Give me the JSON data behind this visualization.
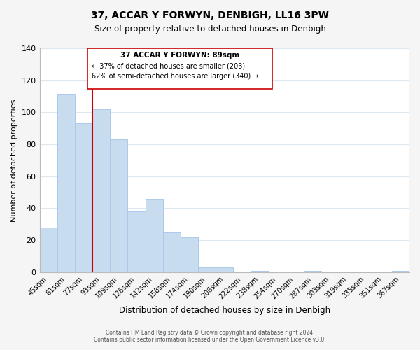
{
  "title": "37, ACCAR Y FORWYN, DENBIGH, LL16 3PW",
  "subtitle": "Size of property relative to detached houses in Denbigh",
  "xlabel": "Distribution of detached houses by size in Denbigh",
  "ylabel": "Number of detached properties",
  "bar_labels": [
    "45sqm",
    "61sqm",
    "77sqm",
    "93sqm",
    "109sqm",
    "126sqm",
    "142sqm",
    "158sqm",
    "174sqm",
    "190sqm",
    "206sqm",
    "222sqm",
    "238sqm",
    "254sqm",
    "270sqm",
    "287sqm",
    "303sqm",
    "319sqm",
    "335sqm",
    "351sqm",
    "367sqm"
  ],
  "bar_values": [
    28,
    111,
    93,
    102,
    83,
    38,
    46,
    25,
    22,
    3,
    3,
    0,
    1,
    0,
    0,
    1,
    0,
    0,
    0,
    0,
    1
  ],
  "bar_color": "#c8dcf0",
  "bar_edge_color": "#aec9e8",
  "ylim": [
    0,
    140
  ],
  "yticks": [
    0,
    20,
    40,
    60,
    80,
    100,
    120,
    140
  ],
  "marker_index": 3,
  "marker_line_color": "#cc0000",
  "annotation_title": "37 ACCAR Y FORWYN: 89sqm",
  "annotation_line1": "← 37% of detached houses are smaller (203)",
  "annotation_line2": "62% of semi-detached houses are larger (340) →",
  "footer_line1": "Contains HM Land Registry data © Crown copyright and database right 2024.",
  "footer_line2": "Contains public sector information licensed under the Open Government Licence v3.0.",
  "background_color": "#f5f5f5",
  "plot_background_color": "#ffffff",
  "grid_color": "#dce8f0"
}
